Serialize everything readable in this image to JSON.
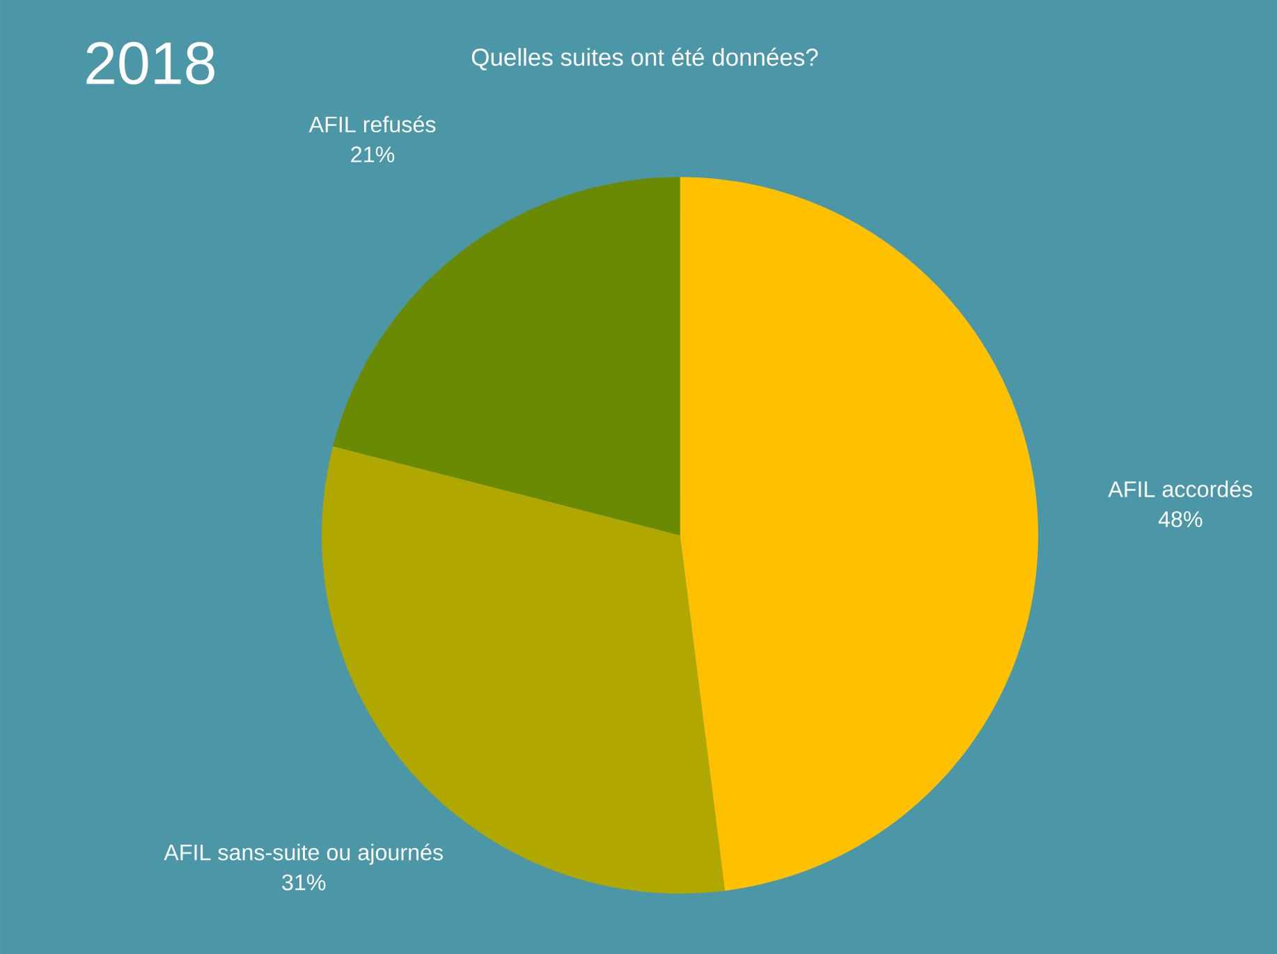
{
  "chart_data": {
    "type": "pie",
    "title": "2018",
    "subtitle": "Quelles suites ont été données?",
    "categories": [
      "AFIL accordés",
      "AFIL sans-suite ou ajournés",
      "AFIL refusés"
    ],
    "values": [
      48,
      31,
      21
    ],
    "colors": [
      "#ffc000",
      "#b0a800",
      "#6b8a04"
    ],
    "value_labels": [
      "48%",
      "31%",
      "21%"
    ]
  }
}
